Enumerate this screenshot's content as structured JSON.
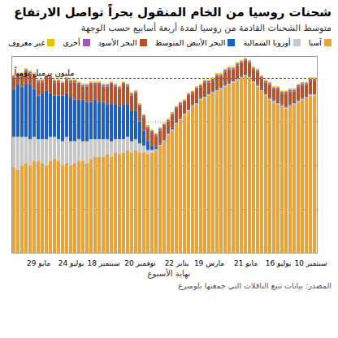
{
  "chart_data": {
    "type": "bar",
    "stacked": true,
    "title": "شحنات روسيا من الخام المنقول بحراً تواصل الارتفاع",
    "subtitle": "متوسط الشحنات القادمة من روسيا لمدة أربعة أسابيع حسب الوجهة",
    "x_label": "نهاية الأسبوع",
    "y_label": "مليون برميل يومياً",
    "source": "المصدر: بيانات تتبع الناقلات التي جمعتها بلومبرغ",
    "categories": [
      null,
      null,
      null,
      null,
      null,
      null,
      "29 مايو",
      null,
      null,
      null,
      null,
      null,
      null,
      null,
      "24 يوليو",
      null,
      null,
      null,
      null,
      null,
      null,
      null,
      "18 سبتمبر",
      null,
      null,
      null,
      null,
      null,
      null,
      null,
      null,
      "20 نوفمبر",
      null,
      null,
      null,
      null,
      null,
      null,
      null,
      null,
      "22 يناير",
      null,
      null,
      null,
      null,
      null,
      null,
      null,
      "19 مارس",
      null,
      null,
      null,
      null,
      null,
      null,
      null,
      null,
      "21 مايو",
      null,
      null,
      null,
      null,
      null,
      null,
      null,
      "16 يوليو",
      null,
      null,
      null,
      null,
      null,
      null,
      null,
      "10 سبتمبر",
      null
    ],
    "ylim": [
      0,
      4.5
    ],
    "yticks": [
      1,
      2,
      3,
      4
    ],
    "grid": true,
    "tick_labels": "x",
    "series": [
      {
        "name": "آسيا",
        "color": "#e8a33d",
        "values": [
          1.95,
          1.9,
          2.0,
          2.05,
          2.0,
          2.1,
          2.1,
          2.05,
          2.0,
          2.1,
          2.15,
          2.1,
          2.0,
          2.05,
          2.0,
          2.05,
          2.1,
          2.1,
          2.05,
          2.15,
          2.2,
          2.2,
          2.2,
          2.25,
          2.2,
          2.3,
          2.25,
          2.3,
          2.35,
          2.3,
          2.35,
          2.3,
          2.3,
          2.25,
          2.3,
          2.35,
          2.45,
          2.55,
          2.7,
          2.8,
          2.95,
          3.05,
          3.15,
          3.25,
          3.35,
          3.4,
          3.5,
          3.55,
          3.6,
          3.65,
          3.7,
          3.75,
          3.8,
          3.85,
          3.9,
          3.95,
          4.0,
          4.05,
          4.0,
          3.9,
          3.8,
          3.7,
          3.6,
          3.5,
          3.45,
          3.4,
          3.35,
          3.3,
          3.35,
          3.4,
          3.45,
          3.5,
          3.55,
          3.6,
          3.6
        ]
      },
      {
        "name": "أوروبا الشمالية",
        "color": "#c8c8c8",
        "values": [
          0.7,
          0.75,
          0.65,
          0.6,
          0.6,
          0.55,
          0.5,
          0.55,
          0.6,
          0.55,
          0.5,
          0.5,
          0.55,
          0.6,
          0.55,
          0.5,
          0.5,
          0.45,
          0.5,
          0.45,
          0.4,
          0.4,
          0.4,
          0.35,
          0.35,
          0.3,
          0.35,
          0.3,
          0.3,
          0.25,
          0.25,
          0.2,
          0.15,
          0.1,
          0.05,
          0.02,
          0.02,
          0.02,
          0.02,
          0.02,
          0.02,
          0.02,
          0.02,
          0.02,
          0.02,
          0.02,
          0.02,
          0.02,
          0.02,
          0.02,
          0.02,
          0.02,
          0.02,
          0.02,
          0.02,
          0.02,
          0.02,
          0.02,
          0.02,
          0.02,
          0.02,
          0.02,
          0.02,
          0.02,
          0.02,
          0.02,
          0.02,
          0.02,
          0.02,
          0.02,
          0.02,
          0.02,
          0.02,
          0.02,
          0.02
        ]
      },
      {
        "name": "البحر الأبيض المتوسط",
        "color": "#1f5fbf",
        "values": [
          1.1,
          1.2,
          1.15,
          1.2,
          1.25,
          1.1,
          1.0,
          1.05,
          1.1,
          1.0,
          0.95,
          1.0,
          1.05,
          1.0,
          1.0,
          0.95,
          0.9,
          0.95,
          0.9,
          0.85,
          0.9,
          0.85,
          0.85,
          0.8,
          0.85,
          0.8,
          0.75,
          0.8,
          0.75,
          0.7,
          0.65,
          0.5,
          0.35,
          0.2,
          0.1,
          0.05,
          0.03,
          0.03,
          0.03,
          0.03,
          0.02,
          0.02,
          0.02,
          0.02,
          0.02,
          0.02,
          0.02,
          0.02,
          0.02,
          0.02,
          0.02,
          0.02,
          0.02,
          0.02,
          0.02,
          0.02,
          0.02,
          0.02,
          0.02,
          0.02,
          0.02,
          0.02,
          0.02,
          0.02,
          0.02,
          0.02,
          0.02,
          0.02,
          0.02,
          0.02,
          0.02,
          0.02,
          0.02,
          0.02,
          0.02
        ]
      },
      {
        "name": "البحر الأسود",
        "color": "#b5532f",
        "values": [
          0.25,
          0.2,
          0.25,
          0.3,
          0.25,
          0.3,
          0.3,
          0.25,
          0.3,
          0.35,
          0.3,
          0.3,
          0.25,
          0.3,
          0.35,
          0.4,
          0.35,
          0.3,
          0.35,
          0.4,
          0.35,
          0.4,
          0.35,
          0.4,
          0.45,
          0.4,
          0.4,
          0.45,
          0.4,
          0.35,
          0.4,
          0.35,
          0.3,
          0.3,
          0.3,
          0.25,
          0.3,
          0.3,
          0.25,
          0.3,
          0.3,
          0.3,
          0.25,
          0.3,
          0.25,
          0.3,
          0.25,
          0.3,
          0.25,
          0.25,
          0.3,
          0.25,
          0.3,
          0.3,
          0.25,
          0.3,
          0.3,
          0.3,
          0.3,
          0.25,
          0.3,
          0.25,
          0.25,
          0.3,
          0.25,
          0.3,
          0.25,
          0.3,
          0.3,
          0.25,
          0.3,
          0.3,
          0.25,
          0.3,
          0.3
        ]
      },
      {
        "name": "أخرى",
        "color": "#9b59b6",
        "values": [
          0.04,
          0.04,
          0.04,
          0.04,
          0.04,
          0.04,
          0.04,
          0.04,
          0.04,
          0.04,
          0.04,
          0.04,
          0.04,
          0.04,
          0.04,
          0.04,
          0.04,
          0.04,
          0.04,
          0.04,
          0.04,
          0.04,
          0.04,
          0.04,
          0.04,
          0.04,
          0.04,
          0.04,
          0.04,
          0.04,
          0.04,
          0.04,
          0.04,
          0.04,
          0.04,
          0.04,
          0.04,
          0.04,
          0.04,
          0.04,
          0.04,
          0.04,
          0.04,
          0.04,
          0.04,
          0.04,
          0.04,
          0.04,
          0.04,
          0.04,
          0.04,
          0.04,
          0.04,
          0.04,
          0.04,
          0.04,
          0.04,
          0.04,
          0.04,
          0.04,
          0.04,
          0.04,
          0.04,
          0.04,
          0.04,
          0.04,
          0.04,
          0.04,
          0.04,
          0.04,
          0.04,
          0.04,
          0.04,
          0.04,
          0.04
        ]
      },
      {
        "name": "غير معروف",
        "color": "#e6c200",
        "values": [
          0.03,
          0.03,
          0.03,
          0.03,
          0.03,
          0.03,
          0.03,
          0.03,
          0.03,
          0.03,
          0.03,
          0.03,
          0.03,
          0.03,
          0.03,
          0.03,
          0.03,
          0.03,
          0.03,
          0.03,
          0.03,
          0.03,
          0.03,
          0.03,
          0.03,
          0.03,
          0.03,
          0.03,
          0.03,
          0.03,
          0.03,
          0.03,
          0.03,
          0.03,
          0.03,
          0.03,
          0.03,
          0.03,
          0.03,
          0.03,
          0.03,
          0.03,
          0.03,
          0.03,
          0.03,
          0.03,
          0.03,
          0.03,
          0.03,
          0.03,
          0.03,
          0.03,
          0.03,
          0.03,
          0.03,
          0.03,
          0.03,
          0.03,
          0.03,
          0.03,
          0.03,
          0.03,
          0.03,
          0.03,
          0.03,
          0.03,
          0.03,
          0.03,
          0.03,
          0.03,
          0.03,
          0.03,
          0.03,
          0.03,
          0.03
        ]
      }
    ]
  }
}
